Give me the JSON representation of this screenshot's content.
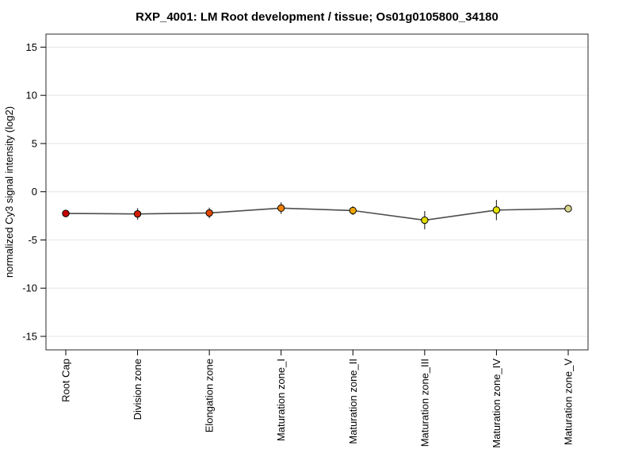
{
  "chart_data": {
    "type": "line",
    "title": "RXP_4001: LM Root development / tissue; Os01g0105800_34180",
    "xlabel": "",
    "ylabel": "normalized Cy3 signal intensity (log2)",
    "ylim": [
      -16.4,
      16.35
    ],
    "yticks": [
      15,
      10,
      5,
      0,
      -5,
      -10,
      -15
    ],
    "grid": true,
    "legend_position": "none",
    "categories": [
      "Root Cap",
      "Division zone",
      "Elongation zone",
      "Maturation zone_I",
      "Maturation zone_II",
      "Maturation zone_III",
      "Maturation zone_IV",
      "Maturation zone_V"
    ],
    "series": [
      {
        "values": [
          -2.25,
          -2.3,
          -2.2,
          -1.7,
          -1.95,
          -2.95,
          -1.9,
          -1.75
        ],
        "error_bars": [
          0.15,
          0.6,
          0.55,
          0.6,
          0.45,
          0.95,
          1.05,
          0.15
        ],
        "point_colors": [
          "#c80000",
          "#d42000",
          "#e04800",
          "#ee7f00",
          "#eea400",
          "#e0dc00",
          "#e6e200",
          "#d8d88c"
        ],
        "line_color": "#4d4d4d",
        "error_color": "#333333",
        "marker_outline": "#000000"
      }
    ],
    "colors": {
      "gridline": "#e4e4e4",
      "frame": "#4d4d4d",
      "tick": "#000000",
      "background": "#ffffff"
    }
  }
}
